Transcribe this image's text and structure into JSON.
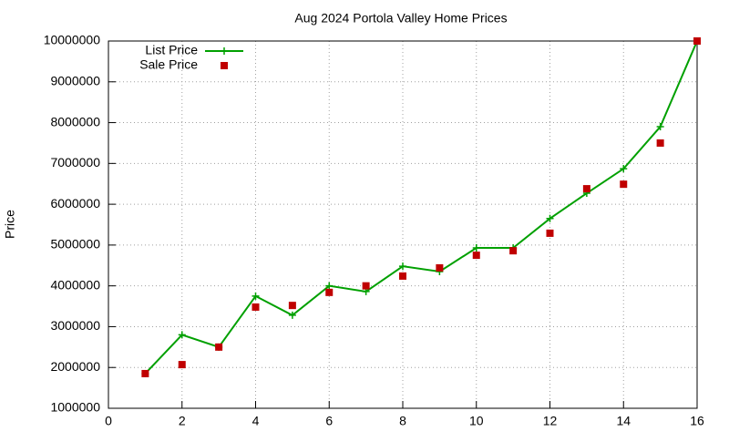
{
  "chart_data": {
    "type": "line",
    "title": "Aug 2024 Portola Valley Home Prices",
    "y_label": "Price",
    "xlim": [
      0,
      16
    ],
    "xticks": [
      0,
      2,
      4,
      6,
      8,
      10,
      12,
      14,
      16
    ],
    "ylim": [
      1000000,
      10000000
    ],
    "yticks": [
      1000000,
      2000000,
      3000000,
      4000000,
      5000000,
      6000000,
      7000000,
      8000000,
      9000000,
      10000000
    ],
    "grid": true,
    "legend": "top-left",
    "x": [
      1,
      2,
      3,
      4,
      5,
      6,
      7,
      8,
      9,
      10,
      11,
      12,
      13,
      14,
      15,
      16
    ],
    "series": [
      {
        "name": "List Price",
        "color": "#00a000",
        "style": "linespoints",
        "values": [
          1850000,
          2800000,
          2500000,
          3750000,
          3280000,
          4000000,
          3860000,
          4480000,
          4350000,
          4930000,
          4930000,
          5650000,
          6270000,
          6870000,
          7900000,
          10000000
        ]
      },
      {
        "name": "Sale Price",
        "color": "#c00000",
        "style": "points",
        "values": [
          1850000,
          2070000,
          2500000,
          3480000,
          3520000,
          3840000,
          4000000,
          4240000,
          4440000,
          4750000,
          4860000,
          5290000,
          6380000,
          6490000,
          7500000,
          10000000
        ]
      }
    ]
  }
}
